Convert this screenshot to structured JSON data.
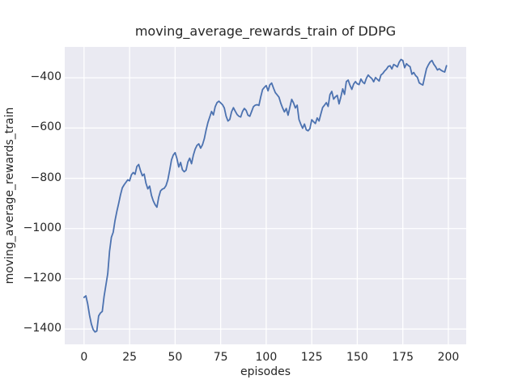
{
  "chart_data": {
    "type": "line",
    "title": "moving_average_rewards_train of DDPG",
    "xlabel": "episodes",
    "ylabel": "moving_average_rewards_train",
    "x_ticks": [
      0,
      25,
      50,
      75,
      100,
      125,
      150,
      175,
      200
    ],
    "x_tick_labels": [
      "0",
      "25",
      "50",
      "75",
      "100",
      "125",
      "150",
      "175",
      "200"
    ],
    "y_ticks": [
      -400,
      -600,
      -800,
      -1000,
      -1200,
      -1400
    ],
    "y_tick_labels": [
      "−400",
      "−600",
      "−800",
      "−1000",
      "−1200",
      "−1400"
    ],
    "xlim": [
      -10.6,
      209.8
    ],
    "ylim": [
      -1461,
      -277
    ],
    "grid": true,
    "legend_position": "none",
    "style": {
      "figure_bg": "#ffffff",
      "axes_bg": "#eaeaf2",
      "grid_color": "#ffffff",
      "line_color": "#4c72b0",
      "text_color": "#262626"
    },
    "series": [
      {
        "name": "moving_average_rewards_train",
        "x_start": 0,
        "x_step": 1,
        "values": [
          -1274,
          -1268,
          -1300,
          -1345,
          -1380,
          -1402,
          -1412,
          -1408,
          -1348,
          -1336,
          -1330,
          -1270,
          -1225,
          -1180,
          -1090,
          -1035,
          -1015,
          -968,
          -932,
          -900,
          -866,
          -838,
          -826,
          -816,
          -806,
          -810,
          -786,
          -777,
          -784,
          -753,
          -745,
          -770,
          -790,
          -783,
          -820,
          -842,
          -831,
          -868,
          -890,
          -905,
          -915,
          -875,
          -850,
          -843,
          -840,
          -829,
          -806,
          -768,
          -727,
          -707,
          -698,
          -722,
          -755,
          -737,
          -766,
          -774,
          -768,
          -735,
          -720,
          -742,
          -708,
          -684,
          -669,
          -663,
          -680,
          -667,
          -643,
          -608,
          -578,
          -556,
          -534,
          -548,
          -515,
          -499,
          -493,
          -500,
          -507,
          -520,
          -553,
          -572,
          -566,
          -535,
          -519,
          -533,
          -546,
          -553,
          -556,
          -534,
          -522,
          -530,
          -549,
          -553,
          -534,
          -515,
          -509,
          -507,
          -510,
          -476,
          -447,
          -438,
          -431,
          -452,
          -428,
          -421,
          -441,
          -459,
          -468,
          -477,
          -501,
          -520,
          -536,
          -522,
          -549,
          -517,
          -486,
          -500,
          -520,
          -509,
          -566,
          -585,
          -601,
          -584,
          -607,
          -611,
          -602,
          -567,
          -575,
          -582,
          -560,
          -572,
          -544,
          -518,
          -509,
          -499,
          -514,
          -467,
          -454,
          -485,
          -476,
          -470,
          -504,
          -476,
          -444,
          -466,
          -415,
          -409,
          -430,
          -446,
          -425,
          -415,
          -424,
          -427,
          -405,
          -417,
          -423,
          -402,
          -389,
          -397,
          -403,
          -416,
          -399,
          -406,
          -413,
          -389,
          -383,
          -373,
          -366,
          -355,
          -352,
          -365,
          -347,
          -351,
          -357,
          -338,
          -327,
          -331,
          -360,
          -344,
          -351,
          -356,
          -386,
          -379,
          -391,
          -398,
          -420,
          -425,
          -429,
          -396,
          -364,
          -349,
          -337,
          -331,
          -346,
          -356,
          -369,
          -364,
          -370,
          -374,
          -377,
          -352
        ]
      }
    ]
  }
}
